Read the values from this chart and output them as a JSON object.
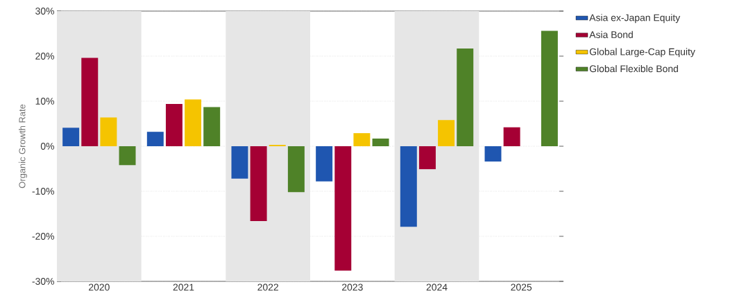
{
  "chart_data": {
    "type": "bar",
    "ylabel": "Organic Growth Rate",
    "categories": [
      "2020",
      "2021",
      "2022",
      "2023",
      "2024",
      "2025"
    ],
    "series": [
      {
        "name": "Asia ex-Japan Equity",
        "color": "#1f56b0",
        "values": [
          4.1,
          3.2,
          -7.2,
          -7.8,
          -17.9,
          -3.4
        ]
      },
      {
        "name": "Asia Bond",
        "color": "#a50034",
        "values": [
          19.6,
          9.4,
          -16.6,
          -27.6,
          -5.1,
          4.2
        ]
      },
      {
        "name": "Global Large-Cap Equity",
        "color": "#f5c400",
        "values": [
          6.4,
          10.4,
          0.3,
          2.9,
          5.8,
          0
        ]
      },
      {
        "name": "Global Flexible Bond",
        "color": "#4f8228",
        "values": [
          -4.2,
          8.7,
          -10.2,
          1.7,
          21.7,
          25.6
        ]
      }
    ],
    "ylim": [
      -30,
      30
    ],
    "yticks": [
      {
        "value": -30,
        "label": "-30%"
      },
      {
        "value": -20,
        "label": "-20%"
      },
      {
        "value": -10,
        "label": "-10%"
      },
      {
        "value": 0,
        "label": "0%"
      },
      {
        "value": 10,
        "label": "10%"
      },
      {
        "value": 20,
        "label": "20%"
      },
      {
        "value": 30,
        "label": "30%"
      }
    ],
    "bands": [
      {
        "axis": "x",
        "from": "2020",
        "to": "2020",
        "color": "#e6e6e6"
      },
      {
        "axis": "x",
        "from": "2022",
        "to": "2022",
        "color": "#e6e6e6"
      },
      {
        "axis": "x",
        "from": "2024",
        "to": "2024",
        "color": "#e6e6e6"
      }
    ],
    "grid": "y",
    "legend": "right"
  }
}
